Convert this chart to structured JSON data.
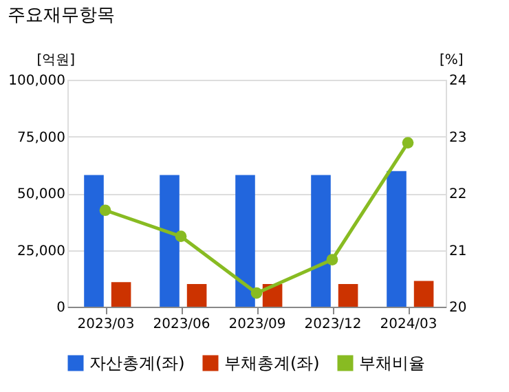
{
  "chart_data": {
    "type": "bar",
    "title": "주요재무항목",
    "ylabel": "[억원]",
    "y2label": "[%]",
    "categories": [
      "2023/03",
      "2023/06",
      "2023/09",
      "2023/12",
      "2024/03"
    ],
    "series": [
      {
        "name": "자산총계(좌)",
        "color": "#2266dd",
        "values": [
          58000,
          58000,
          58000,
          58000,
          59800
        ]
      },
      {
        "name": "부채총계(좌)",
        "color": "#cc3300",
        "values": [
          10800,
          10000,
          10000,
          10000,
          11400
        ]
      },
      {
        "name": "부채비율",
        "type": "line",
        "axis": "y2",
        "color": "#88bb22",
        "marker": "circle",
        "values": [
          21.7,
          21.24,
          20.24,
          20.83,
          22.89
        ]
      }
    ],
    "ylim": [
      0,
      100000
    ],
    "yticks": [
      0,
      {
        "value": 25000,
        "label": "25,000"
      },
      {
        "value": 50000,
        "label": "50,000"
      },
      {
        "value": 75000,
        "label": "75,000"
      },
      {
        "value": 100000,
        "label": "100,000"
      }
    ],
    "y2lim": [
      20,
      24
    ],
    "y2ticks": [
      20,
      21,
      22,
      23,
      24
    ],
    "grid": "y",
    "legend": "bottom"
  }
}
